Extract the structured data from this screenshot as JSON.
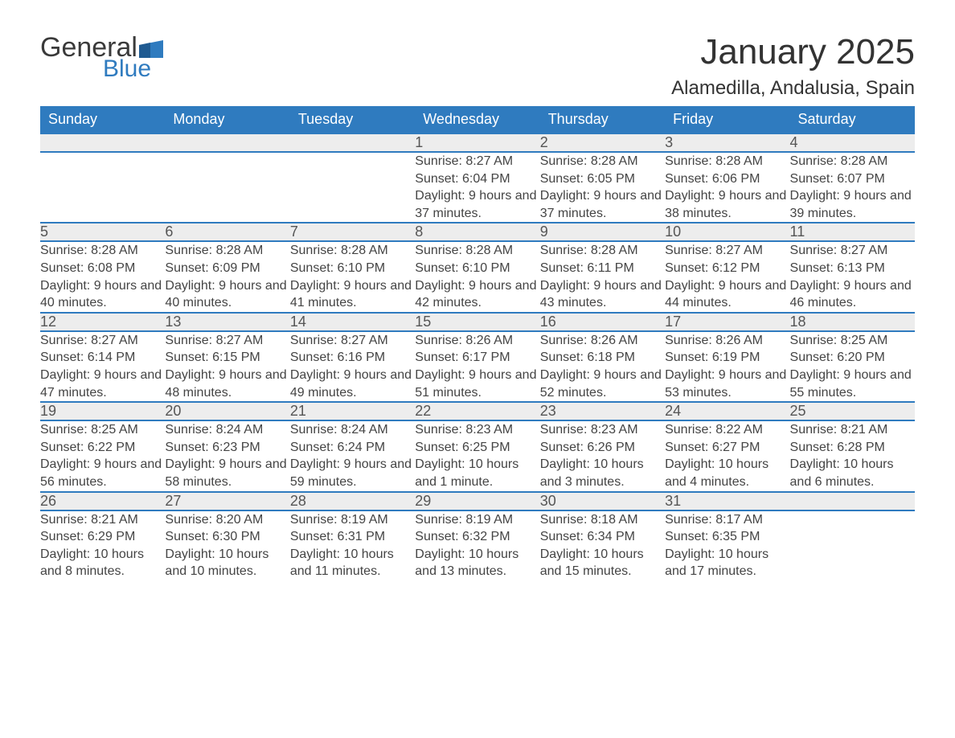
{
  "brand": {
    "word1": "General",
    "word2": "Blue",
    "word1_color": "#3a3a3a",
    "word2_color": "#2f7bbf",
    "flag_color": "#2f7bbf"
  },
  "title": "January 2025",
  "location": "Alamedilla, Andalusia, Spain",
  "colors": {
    "header_bg": "#2f7bbf",
    "header_text": "#ffffff",
    "daynum_bg": "#ededed",
    "row_border": "#2f7bbf",
    "body_text": "#444444",
    "page_bg": "#ffffff"
  },
  "typography": {
    "title_fontsize": 44,
    "location_fontsize": 24,
    "weekday_fontsize": 18,
    "daynum_fontsize": 18,
    "cell_fontsize": 16
  },
  "weekdays": [
    "Sunday",
    "Monday",
    "Tuesday",
    "Wednesday",
    "Thursday",
    "Friday",
    "Saturday"
  ],
  "weeks": [
    [
      null,
      null,
      null,
      {
        "n": "1",
        "sunrise": "8:27 AM",
        "sunset": "6:04 PM",
        "daylight": "9 hours and 37 minutes."
      },
      {
        "n": "2",
        "sunrise": "8:28 AM",
        "sunset": "6:05 PM",
        "daylight": "9 hours and 37 minutes."
      },
      {
        "n": "3",
        "sunrise": "8:28 AM",
        "sunset": "6:06 PM",
        "daylight": "9 hours and 38 minutes."
      },
      {
        "n": "4",
        "sunrise": "8:28 AM",
        "sunset": "6:07 PM",
        "daylight": "9 hours and 39 minutes."
      }
    ],
    [
      {
        "n": "5",
        "sunrise": "8:28 AM",
        "sunset": "6:08 PM",
        "daylight": "9 hours and 40 minutes."
      },
      {
        "n": "6",
        "sunrise": "8:28 AM",
        "sunset": "6:09 PM",
        "daylight": "9 hours and 40 minutes."
      },
      {
        "n": "7",
        "sunrise": "8:28 AM",
        "sunset": "6:10 PM",
        "daylight": "9 hours and 41 minutes."
      },
      {
        "n": "8",
        "sunrise": "8:28 AM",
        "sunset": "6:10 PM",
        "daylight": "9 hours and 42 minutes."
      },
      {
        "n": "9",
        "sunrise": "8:28 AM",
        "sunset": "6:11 PM",
        "daylight": "9 hours and 43 minutes."
      },
      {
        "n": "10",
        "sunrise": "8:27 AM",
        "sunset": "6:12 PM",
        "daylight": "9 hours and 44 minutes."
      },
      {
        "n": "11",
        "sunrise": "8:27 AM",
        "sunset": "6:13 PM",
        "daylight": "9 hours and 46 minutes."
      }
    ],
    [
      {
        "n": "12",
        "sunrise": "8:27 AM",
        "sunset": "6:14 PM",
        "daylight": "9 hours and 47 minutes."
      },
      {
        "n": "13",
        "sunrise": "8:27 AM",
        "sunset": "6:15 PM",
        "daylight": "9 hours and 48 minutes."
      },
      {
        "n": "14",
        "sunrise": "8:27 AM",
        "sunset": "6:16 PM",
        "daylight": "9 hours and 49 minutes."
      },
      {
        "n": "15",
        "sunrise": "8:26 AM",
        "sunset": "6:17 PM",
        "daylight": "9 hours and 51 minutes."
      },
      {
        "n": "16",
        "sunrise": "8:26 AM",
        "sunset": "6:18 PM",
        "daylight": "9 hours and 52 minutes."
      },
      {
        "n": "17",
        "sunrise": "8:26 AM",
        "sunset": "6:19 PM",
        "daylight": "9 hours and 53 minutes."
      },
      {
        "n": "18",
        "sunrise": "8:25 AM",
        "sunset": "6:20 PM",
        "daylight": "9 hours and 55 minutes."
      }
    ],
    [
      {
        "n": "19",
        "sunrise": "8:25 AM",
        "sunset": "6:22 PM",
        "daylight": "9 hours and 56 minutes."
      },
      {
        "n": "20",
        "sunrise": "8:24 AM",
        "sunset": "6:23 PM",
        "daylight": "9 hours and 58 minutes."
      },
      {
        "n": "21",
        "sunrise": "8:24 AM",
        "sunset": "6:24 PM",
        "daylight": "9 hours and 59 minutes."
      },
      {
        "n": "22",
        "sunrise": "8:23 AM",
        "sunset": "6:25 PM",
        "daylight": "10 hours and 1 minute."
      },
      {
        "n": "23",
        "sunrise": "8:23 AM",
        "sunset": "6:26 PM",
        "daylight": "10 hours and 3 minutes."
      },
      {
        "n": "24",
        "sunrise": "8:22 AM",
        "sunset": "6:27 PM",
        "daylight": "10 hours and 4 minutes."
      },
      {
        "n": "25",
        "sunrise": "8:21 AM",
        "sunset": "6:28 PM",
        "daylight": "10 hours and 6 minutes."
      }
    ],
    [
      {
        "n": "26",
        "sunrise": "8:21 AM",
        "sunset": "6:29 PM",
        "daylight": "10 hours and 8 minutes."
      },
      {
        "n": "27",
        "sunrise": "8:20 AM",
        "sunset": "6:30 PM",
        "daylight": "10 hours and 10 minutes."
      },
      {
        "n": "28",
        "sunrise": "8:19 AM",
        "sunset": "6:31 PM",
        "daylight": "10 hours and 11 minutes."
      },
      {
        "n": "29",
        "sunrise": "8:19 AM",
        "sunset": "6:32 PM",
        "daylight": "10 hours and 13 minutes."
      },
      {
        "n": "30",
        "sunrise": "8:18 AM",
        "sunset": "6:34 PM",
        "daylight": "10 hours and 15 minutes."
      },
      {
        "n": "31",
        "sunrise": "8:17 AM",
        "sunset": "6:35 PM",
        "daylight": "10 hours and 17 minutes."
      },
      null
    ]
  ],
  "labels": {
    "sunrise": "Sunrise:",
    "sunset": "Sunset:",
    "daylight": "Daylight:"
  }
}
